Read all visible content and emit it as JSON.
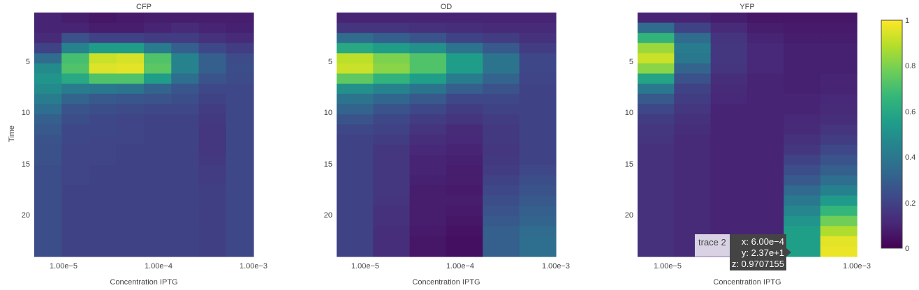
{
  "chart_data": {
    "type": "heatmap",
    "colorscale": "viridis",
    "colors": [
      "#440154",
      "#482878",
      "#3e4989",
      "#31688e",
      "#26828e",
      "#1f9e89",
      "#35b779",
      "#6ece58",
      "#b5de2b",
      "#fde725"
    ],
    "x_ticks": [
      "1.00e−5",
      "1.00e−4",
      "1.00e−3"
    ],
    "y_ticks": [
      "5",
      "10",
      "15",
      "20"
    ],
    "ylabel": "Time",
    "xlabel": "Concentration IPTG",
    "colorbar": {
      "range": [
        0,
        1
      ],
      "ticks": [
        "0",
        "0.2",
        "0.4",
        "0.6",
        "0.8",
        "1"
      ]
    },
    "panels": [
      {
        "title": "CFP",
        "columns": [
          [
            0.1,
            0.1,
            0.12,
            0.2,
            0.35,
            0.48,
            0.52,
            0.48,
            0.42,
            0.36,
            0.3,
            0.28,
            0.26,
            0.25,
            0.25,
            0.24,
            0.24,
            0.24,
            0.24,
            0.24,
            0.24,
            0.24,
            0.24,
            0.24
          ],
          [
            0.08,
            0.1,
            0.25,
            0.45,
            0.7,
            0.72,
            0.6,
            0.42,
            0.32,
            0.26,
            0.24,
            0.22,
            0.22,
            0.21,
            0.21,
            0.21,
            0.21,
            0.2,
            0.2,
            0.2,
            0.2,
            0.2,
            0.2,
            0.2
          ],
          [
            0.06,
            0.08,
            0.2,
            0.55,
            0.92,
            0.95,
            0.72,
            0.4,
            0.28,
            0.24,
            0.22,
            0.22,
            0.21,
            0.21,
            0.21,
            0.2,
            0.2,
            0.2,
            0.2,
            0.2,
            0.2,
            0.2,
            0.2,
            0.2
          ],
          [
            0.07,
            0.08,
            0.2,
            0.55,
            0.94,
            0.96,
            0.72,
            0.38,
            0.27,
            0.23,
            0.21,
            0.21,
            0.21,
            0.2,
            0.2,
            0.2,
            0.2,
            0.2,
            0.2,
            0.2,
            0.2,
            0.2,
            0.2,
            0.2
          ],
          [
            0.08,
            0.1,
            0.18,
            0.42,
            0.72,
            0.74,
            0.55,
            0.32,
            0.26,
            0.22,
            0.2,
            0.2,
            0.2,
            0.2,
            0.2,
            0.2,
            0.2,
            0.2,
            0.2,
            0.2,
            0.2,
            0.2,
            0.2,
            0.2
          ],
          [
            0.08,
            0.12,
            0.18,
            0.3,
            0.45,
            0.45,
            0.36,
            0.27,
            0.24,
            0.22,
            0.2,
            0.2,
            0.2,
            0.2,
            0.2,
            0.2,
            0.2,
            0.2,
            0.2,
            0.2,
            0.2,
            0.2,
            0.2,
            0.2
          ],
          [
            0.08,
            0.1,
            0.14,
            0.22,
            0.3,
            0.3,
            0.26,
            0.22,
            0.2,
            0.18,
            0.17,
            0.16,
            0.16,
            0.16,
            0.17,
            0.18,
            0.18,
            0.19,
            0.19,
            0.19,
            0.19,
            0.19,
            0.19,
            0.19
          ],
          [
            0.08,
            0.09,
            0.12,
            0.18,
            0.23,
            0.24,
            0.23,
            0.22,
            0.22,
            0.22,
            0.22,
            0.22,
            0.22,
            0.22,
            0.22,
            0.22,
            0.22,
            0.22,
            0.22,
            0.22,
            0.22,
            0.22,
            0.22,
            0.22
          ]
        ]
      },
      {
        "title": "OD",
        "columns": [
          [
            0.1,
            0.15,
            0.35,
            0.6,
            0.9,
            0.92,
            0.75,
            0.5,
            0.38,
            0.32,
            0.26,
            0.22,
            0.2,
            0.2,
            0.2,
            0.2,
            0.2,
            0.2,
            0.2,
            0.2,
            0.2,
            0.2,
            0.2,
            0.2
          ],
          [
            0.1,
            0.15,
            0.3,
            0.55,
            0.8,
            0.82,
            0.65,
            0.45,
            0.33,
            0.26,
            0.22,
            0.2,
            0.18,
            0.16,
            0.16,
            0.16,
            0.16,
            0.16,
            0.15,
            0.14,
            0.14,
            0.13,
            0.13,
            0.13
          ],
          [
            0.1,
            0.14,
            0.26,
            0.5,
            0.72,
            0.72,
            0.56,
            0.38,
            0.28,
            0.22,
            0.18,
            0.15,
            0.13,
            0.11,
            0.1,
            0.1,
            0.09,
            0.08,
            0.08,
            0.08,
            0.08,
            0.07,
            0.06,
            0.06
          ],
          [
            0.1,
            0.13,
            0.2,
            0.38,
            0.55,
            0.55,
            0.42,
            0.3,
            0.22,
            0.18,
            0.15,
            0.12,
            0.11,
            0.1,
            0.09,
            0.08,
            0.08,
            0.07,
            0.08,
            0.07,
            0.06,
            0.05,
            0.04,
            0.04
          ],
          [
            0.1,
            0.12,
            0.18,
            0.28,
            0.38,
            0.38,
            0.32,
            0.26,
            0.22,
            0.2,
            0.18,
            0.17,
            0.17,
            0.16,
            0.17,
            0.18,
            0.2,
            0.22,
            0.24,
            0.26,
            0.28,
            0.3,
            0.3,
            0.3
          ],
          [
            0.1,
            0.12,
            0.14,
            0.18,
            0.22,
            0.22,
            0.21,
            0.2,
            0.2,
            0.2,
            0.2,
            0.2,
            0.2,
            0.2,
            0.2,
            0.22,
            0.24,
            0.26,
            0.28,
            0.3,
            0.32,
            0.35,
            0.36,
            0.36
          ]
        ]
      },
      {
        "title": "YFP",
        "columns": [
          [
            0.1,
            0.35,
            0.65,
            0.85,
            0.92,
            0.82,
            0.58,
            0.4,
            0.28,
            0.22,
            0.18,
            0.16,
            0.15,
            0.14,
            0.14,
            0.14,
            0.14,
            0.14,
            0.14,
            0.14,
            0.14,
            0.14,
            0.14,
            0.14
          ],
          [
            0.1,
            0.2,
            0.35,
            0.42,
            0.4,
            0.32,
            0.25,
            0.2,
            0.18,
            0.16,
            0.14,
            0.13,
            0.12,
            0.12,
            0.12,
            0.12,
            0.12,
            0.12,
            0.12,
            0.12,
            0.12,
            0.12,
            0.12,
            0.12
          ],
          [
            0.08,
            0.12,
            0.15,
            0.16,
            0.16,
            0.15,
            0.13,
            0.12,
            0.11,
            0.1,
            0.1,
            0.1,
            0.1,
            0.1,
            0.1,
            0.1,
            0.1,
            0.1,
            0.1,
            0.1,
            0.1,
            0.1,
            0.1,
            0.1
          ],
          [
            0.06,
            0.08,
            0.1,
            0.11,
            0.11,
            0.11,
            0.1,
            0.1,
            0.1,
            0.1,
            0.1,
            0.1,
            0.1,
            0.1,
            0.1,
            0.1,
            0.1,
            0.1,
            0.1,
            0.1,
            0.1,
            0.1,
            0.1,
            0.1
          ],
          [
            0.06,
            0.07,
            0.08,
            0.09,
            0.09,
            0.09,
            0.09,
            0.09,
            0.1,
            0.1,
            0.11,
            0.12,
            0.14,
            0.16,
            0.2,
            0.24,
            0.28,
            0.34,
            0.4,
            0.46,
            0.52,
            0.56,
            0.56,
            0.56
          ],
          [
            0.06,
            0.07,
            0.08,
            0.09,
            0.09,
            0.09,
            0.1,
            0.1,
            0.11,
            0.12,
            0.13,
            0.15,
            0.18,
            0.22,
            0.26,
            0.3,
            0.36,
            0.44,
            0.54,
            0.66,
            0.78,
            0.88,
            0.96,
            0.97
          ]
        ]
      }
    ],
    "hover": {
      "trace": "trace 2",
      "x": "x: 6.00e−4",
      "y": "y: 2.37e+1",
      "z": "z: 0.9707155"
    }
  }
}
